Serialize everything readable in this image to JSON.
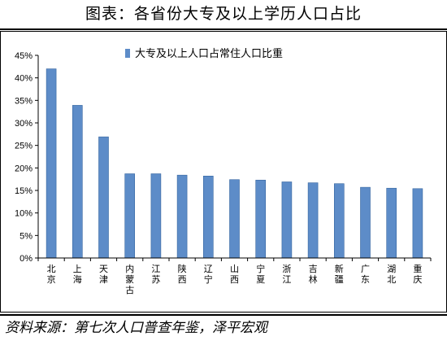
{
  "header": {
    "title": "图表：各省份大专及以上学历人口占比"
  },
  "source": {
    "text": "资料来源：第七次人口普查年鉴，泽平宏观"
  },
  "colors": {
    "bar_fill": "#5d8cc8",
    "bar_edge": "#35659f"
  },
  "chart_data": {
    "type": "bar",
    "categories": [
      "北京",
      "上海",
      "天津",
      "内蒙古",
      "江苏",
      "陕西",
      "辽宁",
      "山西",
      "宁夏",
      "浙江",
      "吉林",
      "新疆",
      "广东",
      "湖北",
      "重庆"
    ],
    "series": [
      {
        "name": "大专及以上人口占常住人口比重",
        "values": [
          42.0,
          33.9,
          26.9,
          18.7,
          18.7,
          18.4,
          18.2,
          17.4,
          17.3,
          16.9,
          16.7,
          16.5,
          15.7,
          15.5,
          15.4
        ]
      }
    ],
    "y_ticks": [
      "0%",
      "5%",
      "10%",
      "15%",
      "20%",
      "25%",
      "30%",
      "35%",
      "40%",
      "45%"
    ],
    "ylim": [
      0,
      45
    ],
    "legend": "top-center",
    "grid": false
  }
}
